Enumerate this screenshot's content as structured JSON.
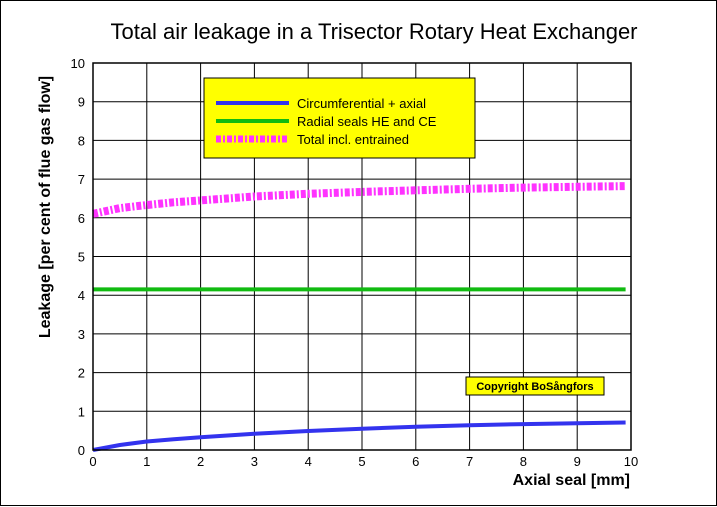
{
  "chart_data": {
    "type": "line",
    "title": "Total air leakage in a Trisector Rotary Heat Exchanger",
    "xlabel": "Axial seal [mm]",
    "ylabel": "Leakage [per cent of flue gas flow]",
    "xlim": [
      0,
      10
    ],
    "ylim": [
      0,
      10
    ],
    "xticks": [
      "0",
      "1",
      "2",
      "3",
      "4",
      "5",
      "6",
      "7",
      "8",
      "9",
      "10"
    ],
    "yticks": [
      "0",
      "1",
      "2",
      "3",
      "4",
      "5",
      "6",
      "7",
      "8",
      "9",
      "10"
    ],
    "grid": true,
    "legend_position": "top-left",
    "series": [
      {
        "name": "Circumferential + axial",
        "color": "#3333ee",
        "style": "solid",
        "x": [
          0,
          0.5,
          1,
          1.5,
          2,
          3,
          4,
          5,
          6,
          7,
          8,
          9,
          9.9
        ],
        "y": [
          0,
          0.13,
          0.22,
          0.28,
          0.33,
          0.42,
          0.49,
          0.55,
          0.6,
          0.64,
          0.67,
          0.69,
          0.71
        ]
      },
      {
        "name": "Radial seals HE and CE",
        "color": "#11bb11",
        "style": "solid",
        "x": [
          0,
          9.9
        ],
        "y": [
          4.15,
          4.15
        ]
      },
      {
        "name": "Total incl. entrained",
        "color": "#ff33ff",
        "style": "dashed",
        "x": [
          0,
          0.5,
          1,
          1.5,
          2,
          3,
          4,
          5,
          6,
          7,
          8,
          9,
          9.9
        ],
        "y": [
          6.1,
          6.25,
          6.33,
          6.4,
          6.45,
          6.55,
          6.62,
          6.67,
          6.71,
          6.75,
          6.78,
          6.8,
          6.82
        ]
      }
    ],
    "annotations": [
      {
        "text": "Copyright BoSångfors"
      }
    ]
  }
}
